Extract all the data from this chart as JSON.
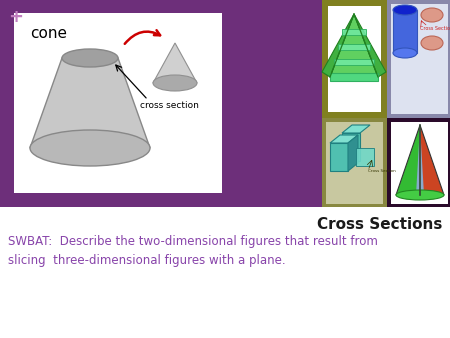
{
  "bg_color": "#ffffff",
  "purple_bg": "#6d2f7a",
  "plus_color": "#c07fc0",
  "white_box_color": "#ffffff",
  "cone_label": "cone",
  "cs_label": "cross section",
  "frustum_fill": "#c8c8c8",
  "frustum_edge": "#888888",
  "frustum_top_fill": "#a0a0a0",
  "frustum_bot_fill": "#b8b8b8",
  "small_cone_fill": "#d0d0d0",
  "small_cone_edge": "#909090",
  "red_arrow": "#cc0000",
  "black_arrow": "#222222",
  "pyramid_bg": "#808020",
  "pyramid_green_light": "#60d060",
  "pyramid_green_mid": "#40b040",
  "pyramid_green_dark": "#208020",
  "slice_fill": "#70e8a0",
  "slice_edge": "#30b060",
  "slice_base_fill": "#50d880",
  "cyl_bg": "#8888aa",
  "cyl_white_box": "#dde0ee",
  "cyl_fill": "#4466dd",
  "cyl_top_fill": "#1122cc",
  "oval_fill": "#dd9988",
  "oval_edge": "#bb6655",
  "cs_text_cyl": "Cross Section",
  "cs_text_color_cyl": "#cc2222",
  "box_bg": "#888840",
  "box_fill": "#50c0b0",
  "box_edge": "#208080",
  "box_dark": "#309090",
  "cs_box_fill": "#70d8c8",
  "cs_box_text": "Cross Section",
  "dark_cone_bg": "#2a0a2a",
  "title": "Cross Sections",
  "title_color": "#1a1a1a",
  "title_fontsize": 11,
  "swbat_text": "SWBAT:  Describe the two-dimensional figures that result from\nslicing  three-dimensional figures with a plane.",
  "swbat_color": "#8844aa",
  "swbat_fontsize": 8.5
}
